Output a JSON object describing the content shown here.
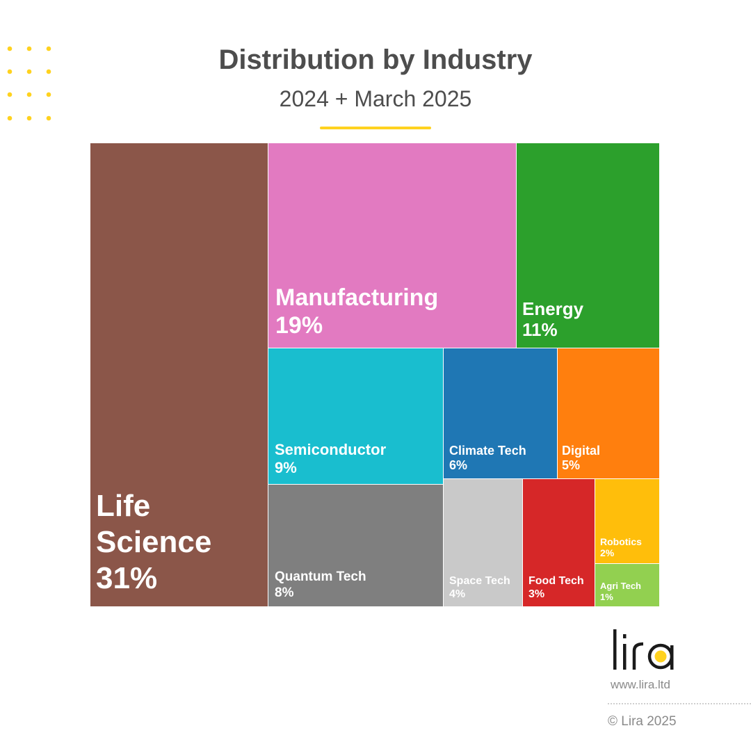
{
  "header": {
    "title": "Distribution by Industry",
    "subtitle": "2024 + March 2025",
    "accent_color": "#ffd21f"
  },
  "chart_data": {
    "type": "treemap",
    "title": "Distribution by Industry",
    "subtitle": "2024 + March 2025",
    "unit": "%",
    "categories": [
      "Life Science",
      "Manufacturing",
      "Energy",
      "Semiconductor",
      "Climate Tech",
      "Digital",
      "Quantum Tech",
      "Space Tech",
      "Food Tech",
      "Robotics",
      "Agri Tech"
    ],
    "values": [
      31,
      19,
      11,
      9,
      6,
      5,
      8,
      4,
      3,
      2,
      1
    ],
    "labels": [
      "31%",
      "19%",
      "11%",
      "9%",
      "6%",
      "5%",
      "8%",
      "4%",
      "3%",
      "2%",
      "1%"
    ],
    "colors": [
      "#8b5649",
      "#e27ac1",
      "#2ca02c",
      "#19becf",
      "#1f77b4",
      "#ff7f0e",
      "#7f7f7f",
      "#c9c9c9",
      "#d62728",
      "#ffbe0b",
      "#92d050"
    ]
  },
  "branding": {
    "logo_text": "lira",
    "website": "www.lira.ltd",
    "copyright": "© Lira 2025",
    "logo_accent": "#ffd21f",
    "logo_color": "#1a1a1a"
  }
}
